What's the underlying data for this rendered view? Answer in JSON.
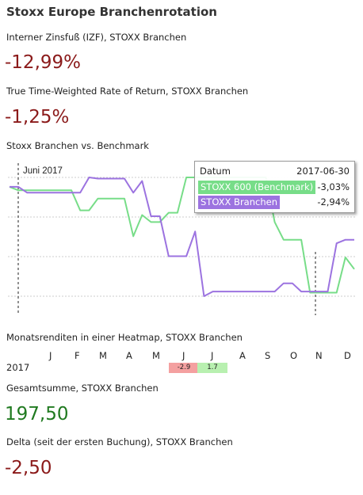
{
  "page_title": "Stoxx Europe Branchenrotation",
  "irr": {
    "label": "Interner Zinsfuß (IZF), STOXX Branchen",
    "value": "-12,99%"
  },
  "ttwror": {
    "label": "True Time-Weighted Rate of Return, STOXX Branchen",
    "value": "-1,25%"
  },
  "compare": {
    "label": "Stoxx Branchen vs. Benchmark",
    "marker_label": "Juni 2017",
    "tooltip": {
      "header_key": "Datum",
      "header_value": "2017-06-30",
      "rows": [
        {
          "name": "STOXX 600 (Benchmark)",
          "value": "-3,03%",
          "color": "#77dd88"
        },
        {
          "name": "STOXX Branchen",
          "value": "-2,94%",
          "color": "#9c73e0"
        }
      ]
    }
  },
  "chart_data": {
    "type": "line",
    "series": [
      {
        "name": "STOXX 600 (Benchmark)",
        "color": "#77dd88",
        "values": [
          0.0,
          -0.3,
          -0.3,
          -0.3,
          -0.3,
          -0.3,
          -0.3,
          -0.3,
          -2.0,
          -2.0,
          -1.0,
          -1.0,
          -1.0,
          -1.0,
          -4.2,
          -2.4,
          -3.0,
          -3.0,
          -2.2,
          -2.2,
          0.8,
          0.8,
          0.8,
          0.8,
          0.8,
          0.8,
          0.8,
          0.8,
          0.8,
          0.8,
          -3.0,
          -4.5,
          -4.5,
          -4.5,
          -9.0,
          -9.0,
          -9.0,
          -9.0,
          -6.0,
          -7.0
        ]
      },
      {
        "name": "STOXX Branchen",
        "color": "#9c73e0",
        "values": [
          0.0,
          0.0,
          -0.5,
          -0.5,
          -0.5,
          -0.5,
          -0.5,
          -0.5,
          -0.5,
          0.8,
          0.7,
          0.7,
          0.7,
          0.7,
          -0.5,
          0.5,
          -2.5,
          -2.5,
          -5.9,
          -5.9,
          -5.9,
          -3.8,
          -9.3,
          -8.9,
          -8.9,
          -8.9,
          -8.9,
          -8.9,
          -8.9,
          -8.9,
          -8.9,
          -8.2,
          -8.2,
          -8.9,
          -8.9,
          -8.9,
          -8.9,
          -4.8,
          -4.5,
          -4.5
        ]
      }
    ]
  },
  "heatmap": {
    "label": "Monatsrenditen in einer Heatmap, STOXX Branchen",
    "months": [
      "J",
      "F",
      "M",
      "A",
      "M",
      "J",
      "J",
      "A",
      "S",
      "O",
      "N",
      "D"
    ],
    "rows": [
      {
        "year": "2017",
        "cells": [
          {
            "month_index": 5,
            "value": "-2.9",
            "color": "#f4a0a0"
          },
          {
            "month_index": 6,
            "value": "1.7",
            "color": "#b8f0b0"
          }
        ]
      }
    ]
  },
  "total": {
    "label": "Gesamtsumme, STOXX Branchen",
    "value": "197,50"
  },
  "delta": {
    "label": "Delta (seit der ersten Buchung), STOXX Branchen",
    "value": "-2,50"
  }
}
